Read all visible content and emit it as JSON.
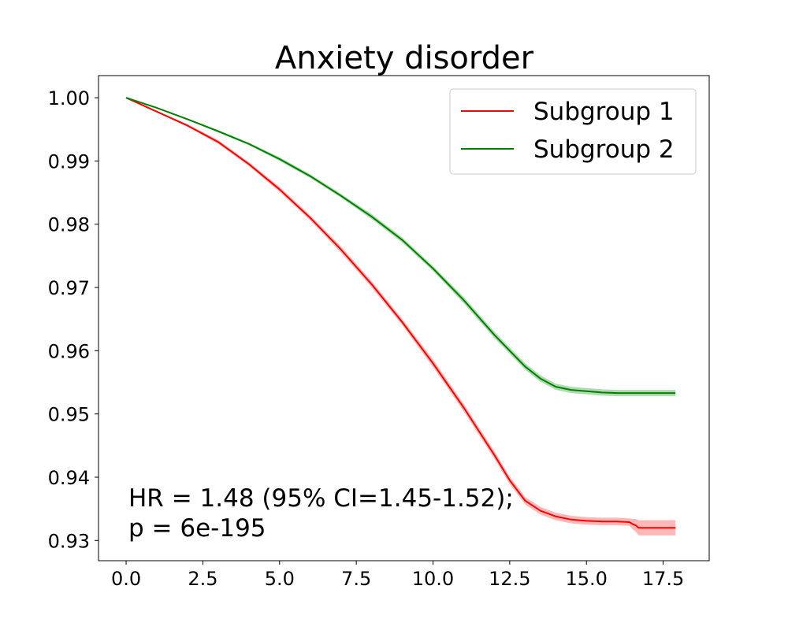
{
  "chart_data": {
    "type": "line",
    "title": "Anxiety disorder",
    "xlabel": "",
    "ylabel": "",
    "xlim": [
      -0.9,
      19.0
    ],
    "ylim": [
      0.9268,
      1.0035
    ],
    "x_ticks": [
      0.0,
      2.5,
      5.0,
      7.5,
      10.0,
      12.5,
      15.0,
      17.5
    ],
    "x_tick_labels": [
      "0.0",
      "2.5",
      "5.0",
      "7.5",
      "10.0",
      "12.5",
      "15.0",
      "17.5"
    ],
    "y_ticks": [
      0.93,
      0.94,
      0.95,
      0.96,
      0.97,
      0.98,
      0.99,
      1.0
    ],
    "y_tick_labels": [
      "0.93",
      "0.94",
      "0.95",
      "0.96",
      "0.97",
      "0.98",
      "0.99",
      "1.00"
    ],
    "grid": false,
    "legend_position": "top-right",
    "series": [
      {
        "name": "Subgroup 1",
        "color": "#ff0000",
        "ci_color": "#ff9a9a",
        "x": [
          0.0,
          1.0,
          2.0,
          3.0,
          4.0,
          5.0,
          6.0,
          7.0,
          8.0,
          9.0,
          10.0,
          11.0,
          12.0,
          12.5,
          13.0,
          13.5,
          14.0,
          14.5,
          15.0,
          15.5,
          16.0,
          16.4,
          16.5,
          16.6,
          16.7,
          17.0,
          17.9
        ],
        "values": [
          1.0,
          0.9978,
          0.9956,
          0.993,
          0.9895,
          0.9855,
          0.981,
          0.976,
          0.9705,
          0.9645,
          0.958,
          0.951,
          0.9435,
          0.9395,
          0.9363,
          0.9347,
          0.9338,
          0.9333,
          0.9331,
          0.933,
          0.933,
          0.9329,
          0.9326,
          0.9324,
          0.932,
          0.932,
          0.932
        ],
        "ci_halfwidth": [
          0.0,
          0.0001,
          0.0002,
          0.0003,
          0.0003,
          0.0004,
          0.0004,
          0.0005,
          0.0005,
          0.0005,
          0.0006,
          0.0006,
          0.0006,
          0.0006,
          0.0006,
          0.0006,
          0.0006,
          0.0006,
          0.0006,
          0.0006,
          0.0006,
          0.0006,
          0.0008,
          0.001,
          0.0012,
          0.0012,
          0.0012
        ]
      },
      {
        "name": "Subgroup 2",
        "color": "#008000",
        "ci_color": "#8fcc8f",
        "x": [
          0.0,
          1.0,
          2.0,
          3.0,
          4.0,
          5.0,
          6.0,
          7.0,
          8.0,
          9.0,
          10.0,
          11.0,
          12.0,
          13.0,
          13.5,
          14.0,
          14.5,
          15.0,
          15.5,
          16.0,
          17.0,
          17.9
        ],
        "values": [
          1.0,
          0.9984,
          0.9966,
          0.9947,
          0.9927,
          0.9903,
          0.9876,
          0.9845,
          0.9812,
          0.9775,
          0.973,
          0.968,
          0.9625,
          0.9575,
          0.9556,
          0.9543,
          0.9538,
          0.9536,
          0.9534,
          0.9533,
          0.9533,
          0.9533
        ],
        "ci_halfwidth": [
          0.0,
          0.0001,
          0.0001,
          0.0002,
          0.0002,
          0.0003,
          0.0003,
          0.0003,
          0.0004,
          0.0004,
          0.0004,
          0.0005,
          0.0005,
          0.0005,
          0.0005,
          0.0005,
          0.0005,
          0.0005,
          0.0005,
          0.0005,
          0.0005,
          0.0005
        ]
      }
    ],
    "annotation": {
      "line1": "HR = 1.48 (95% CI=1.45-1.52);",
      "line2": "p = 6e-195"
    }
  }
}
